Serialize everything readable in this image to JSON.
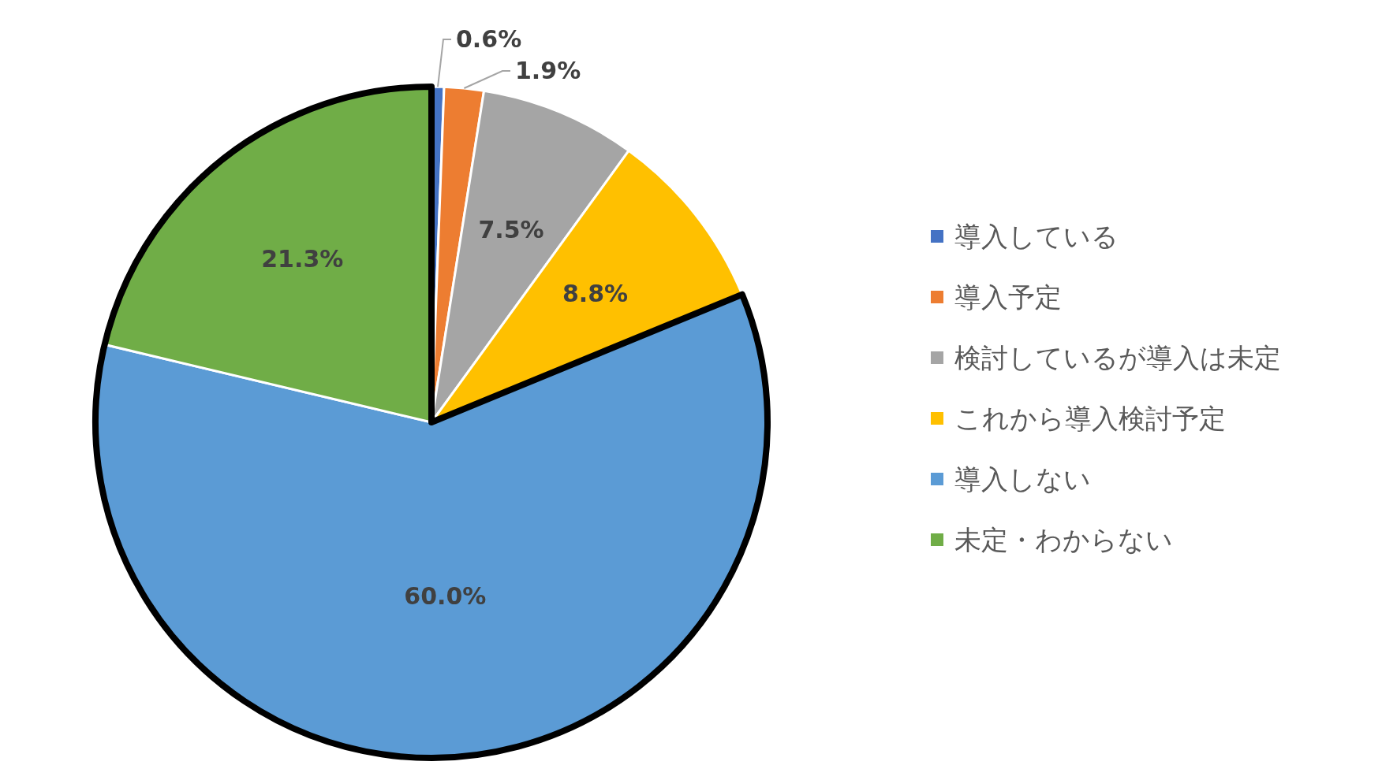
{
  "chart_data": {
    "type": "pie",
    "categories": [
      "導入している",
      "導入予定",
      "検討しているが導入は未定",
      "これから導入検討予定",
      "導入しない",
      "未定・わからない"
    ],
    "values": [
      0.6,
      1.9,
      7.5,
      8.8,
      60.0,
      21.3
    ],
    "colors": [
      "#4472c4",
      "#ed7d31",
      "#a5a5a5",
      "#ffc000",
      "#5b9bd5",
      "#70ad47"
    ],
    "value_labels": [
      "0.6%",
      "1.9%",
      "7.5%",
      "8.8%",
      "60.0%",
      "21.3%"
    ],
    "legend": "right"
  }
}
